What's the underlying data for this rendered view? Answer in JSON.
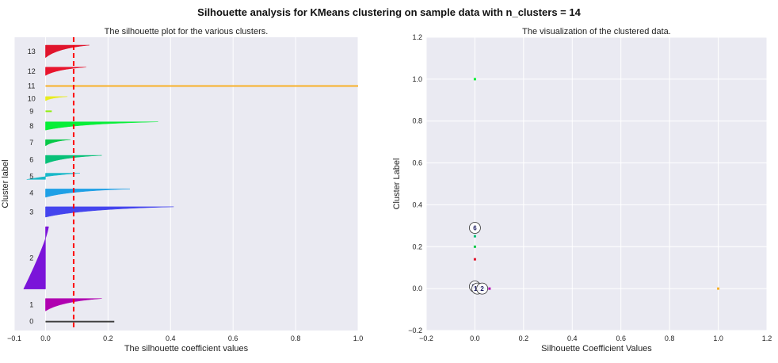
{
  "suptitle": "Silhouette analysis for KMeans clustering on sample data with n_clusters = 14",
  "colors": {
    "plot_bg": "#eaeaf2",
    "grid": "#ffffff",
    "avg_line": "#ff0000",
    "clusters": [
      "#404040",
      "#b000b0",
      "#7b14d9",
      "#4444ee",
      "#1fa0e6",
      "#18b8c8",
      "#08c078",
      "#08c848",
      "#08ee38",
      "#90ee10",
      "#e8ec20",
      "#f8b028",
      "#e8142c",
      "#e0142c"
    ]
  },
  "chart_data": [
    {
      "type": "silhouette",
      "title": "The silhouette plot for the various clusters.",
      "xlabel": "The silhouette coefficient values",
      "ylabel": "Cluster label",
      "xlim": [
        -0.1,
        1.0
      ],
      "xticks": [
        -0.1,
        0.0,
        0.2,
        0.4,
        0.6,
        0.8,
        1.0
      ],
      "xtick_labels": [
        "−0.1",
        "0.0",
        "0.2",
        "0.4",
        "0.6",
        "0.8",
        "1.0"
      ],
      "grid": true,
      "silhouette_avg": 0.09,
      "clusters": [
        {
          "label": "0",
          "max": 0.22,
          "min": 0.22,
          "size": 1
        },
        {
          "label": "1",
          "max": 0.18,
          "min": 0.0,
          "size": 6
        },
        {
          "label": "2",
          "max": 0.01,
          "min": -0.07,
          "size": 30
        },
        {
          "label": "3",
          "max": 0.41,
          "min": 0.0,
          "size": 5
        },
        {
          "label": "4",
          "max": 0.27,
          "min": 0.0,
          "size": 4
        },
        {
          "label": "5",
          "max": 0.11,
          "min": -0.06,
          "size": 3
        },
        {
          "label": "6",
          "max": 0.18,
          "min": 0.0,
          "size": 4
        },
        {
          "label": "7",
          "max": 0.08,
          "min": 0.0,
          "size": 3
        },
        {
          "label": "8",
          "max": 0.36,
          "min": 0.0,
          "size": 4
        },
        {
          "label": "9",
          "max": 0.02,
          "min": 0.0,
          "size": 1
        },
        {
          "label": "10",
          "max": 0.07,
          "min": 0.0,
          "size": 2
        },
        {
          "label": "11",
          "max": 1.0,
          "min": 1.0,
          "size": 1
        },
        {
          "label": "12",
          "max": 0.13,
          "min": 0.0,
          "size": 4
        },
        {
          "label": "13",
          "max": 0.14,
          "min": 0.0,
          "size": 6
        }
      ]
    },
    {
      "type": "scatter",
      "title": "The visualization of the clustered data.",
      "xlabel": "Silhouette Coefficient Values",
      "ylabel": "Cluster Label",
      "xlim": [
        -0.2,
        1.2
      ],
      "ylim": [
        -0.2,
        1.2
      ],
      "xticks": [
        -0.2,
        0.0,
        0.2,
        0.4,
        0.6,
        0.8,
        1.0,
        1.2
      ],
      "xtick_labels": [
        "−0.2",
        "0.0",
        "0.2",
        "0.4",
        "0.6",
        "0.8",
        "1.0",
        "1.2"
      ],
      "yticks": [
        -0.2,
        0.0,
        0.2,
        0.4,
        0.6,
        0.8,
        1.0,
        1.2
      ],
      "ytick_labels": [
        "−0.2",
        "0.0",
        "0.2",
        "0.4",
        "0.6",
        "0.8",
        "1.0",
        "1.2"
      ],
      "grid": true,
      "points": [
        {
          "x": 0.0,
          "y": 1.0,
          "cluster": "8"
        },
        {
          "x": 0.0,
          "y": 0.25,
          "cluster": "6"
        },
        {
          "x": 0.0,
          "y": 0.2,
          "cluster": "7"
        },
        {
          "x": 0.0,
          "y": 0.14,
          "cluster": "13"
        },
        {
          "x": 0.0,
          "y": 0.0,
          "cluster": "3"
        },
        {
          "x": 0.01,
          "y": 0.0,
          "cluster": "4"
        },
        {
          "x": 0.02,
          "y": 0.0,
          "cluster": "12"
        },
        {
          "x": 0.04,
          "y": 0.0,
          "cluster": "5"
        },
        {
          "x": 0.06,
          "y": 0.0,
          "cluster": "1"
        },
        {
          "x": 1.0,
          "y": 0.0,
          "cluster": "11"
        }
      ],
      "centers": [
        {
          "label": "6",
          "x": 0.0,
          "y": 0.29
        },
        {
          "label": "13",
          "x": 0.0,
          "y": 0.01
        },
        {
          "label": "12",
          "x": 0.01,
          "y": 0.0
        },
        {
          "label": "2",
          "x": 0.03,
          "y": 0.0
        }
      ]
    }
  ]
}
